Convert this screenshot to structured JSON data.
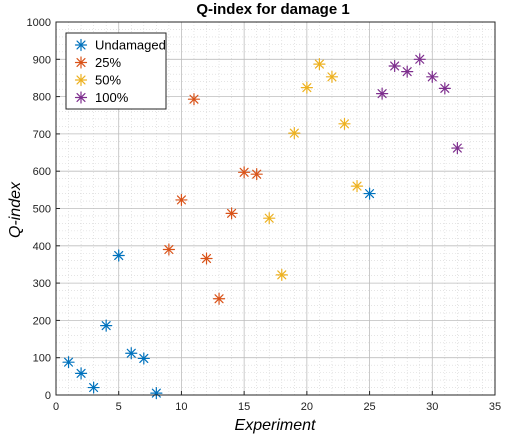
{
  "chart_data": {
    "type": "scatter",
    "title": "Q-index for damage 1",
    "xlabel": "Experiment",
    "ylabel": "Q-index",
    "xlim": [
      0,
      35
    ],
    "ylim": [
      0,
      1000
    ],
    "xticks": [
      0,
      5,
      10,
      15,
      20,
      25,
      30,
      35
    ],
    "yticks": [
      0,
      100,
      200,
      300,
      400,
      500,
      600,
      700,
      800,
      900,
      1000
    ],
    "grid": "major and minor",
    "legend_position": "top-left",
    "marker": "asterisk",
    "series": [
      {
        "name": "Undamaged",
        "color": "#0072BD",
        "points": [
          [
            1,
            88
          ],
          [
            2,
            58
          ],
          [
            3,
            20
          ],
          [
            4,
            186
          ],
          [
            5,
            374
          ],
          [
            6,
            112
          ],
          [
            7,
            98
          ],
          [
            8,
            5
          ],
          [
            25,
            540
          ]
        ]
      },
      {
        "name": "25%",
        "color": "#D95319",
        "points": [
          [
            9,
            390
          ],
          [
            10,
            523
          ],
          [
            11,
            793
          ],
          [
            12,
            366
          ],
          [
            13,
            258
          ],
          [
            14,
            487
          ],
          [
            15,
            597
          ],
          [
            16,
            592
          ]
        ]
      },
      {
        "name": "50%",
        "color": "#EDB120",
        "points": [
          [
            17,
            474
          ],
          [
            18,
            322
          ],
          [
            19,
            702
          ],
          [
            20,
            824
          ],
          [
            21,
            887
          ],
          [
            22,
            853
          ],
          [
            23,
            727
          ],
          [
            24,
            560
          ]
        ]
      },
      {
        "name": "100%",
        "color": "#7E2F8E",
        "points": [
          [
            26,
            808
          ],
          [
            27,
            882
          ],
          [
            28,
            867
          ],
          [
            29,
            900
          ],
          [
            30,
            853
          ],
          [
            31,
            822
          ],
          [
            32,
            662
          ]
        ]
      }
    ]
  }
}
